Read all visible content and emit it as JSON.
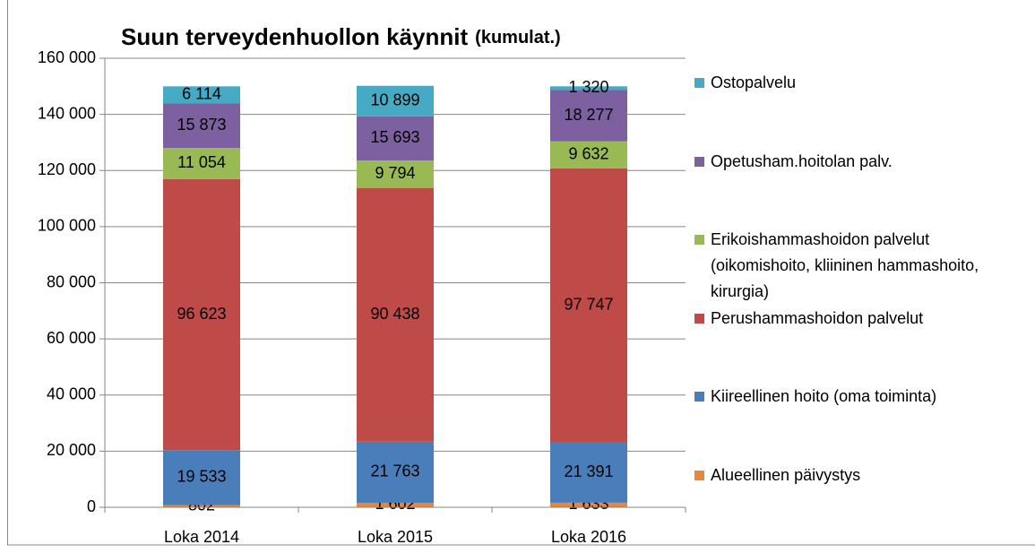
{
  "chart_data": {
    "type": "stacked_bar",
    "title": "Suun terveydenhuollon käynnit",
    "subtitle": "(kumulat.)",
    "categories": [
      "Loka 2014",
      "Loka 2015",
      "Loka 2016"
    ],
    "series": [
      {
        "name": "Alueellinen päivystys",
        "color": "#e8873a",
        "values": [
          802,
          1602,
          1633
        ],
        "value_labels": [
          "802",
          "1 602",
          "1 633"
        ]
      },
      {
        "name": "Kiireellinen hoito (oma toiminta)",
        "color": "#4a7ebb",
        "values": [
          19533,
          21763,
          21391
        ],
        "value_labels": [
          "19 533",
          "21 763",
          "21 391"
        ]
      },
      {
        "name": "Perushammashoidon palvelut",
        "color": "#be4b48",
        "values": [
          96623,
          90438,
          97747
        ],
        "value_labels": [
          "96 623",
          "90 438",
          "97 747"
        ]
      },
      {
        "name": "Erikoishammashoidon palvelut (oikomishoito, kliininen hammashoito, kirurgia)",
        "color": "#98b954",
        "values": [
          11054,
          9794,
          9632
        ],
        "value_labels": [
          "11 054",
          "9 794",
          "9 632"
        ]
      },
      {
        "name": "Opetusham.hoitolan palv.",
        "color": "#7d60a0",
        "values": [
          15873,
          15693,
          18277
        ],
        "value_labels": [
          "15 873",
          "15 693",
          "18 277"
        ]
      },
      {
        "name": "Ostopalvelu",
        "color": "#46aac5",
        "values": [
          6114,
          10899,
          1320
        ],
        "value_labels": [
          "6 114",
          "10 899",
          "1 320"
        ]
      }
    ],
    "ylim": [
      0,
      160000
    ],
    "yticks": [
      0,
      {
        "value": 20000,
        "label": "20 000"
      },
      {
        "value": 40000,
        "label": "40 000"
      },
      {
        "value": 60000,
        "label": "60 000"
      },
      {
        "value": 80000,
        "label": "80 000"
      },
      {
        "value": 100000,
        "label": "100 000"
      },
      {
        "value": 120000,
        "label": "120 000"
      },
      {
        "value": 140000,
        "label": "140 000"
      },
      {
        "value": 160000,
        "label": "160 000"
      }
    ],
    "grid": true,
    "legend": "right"
  }
}
